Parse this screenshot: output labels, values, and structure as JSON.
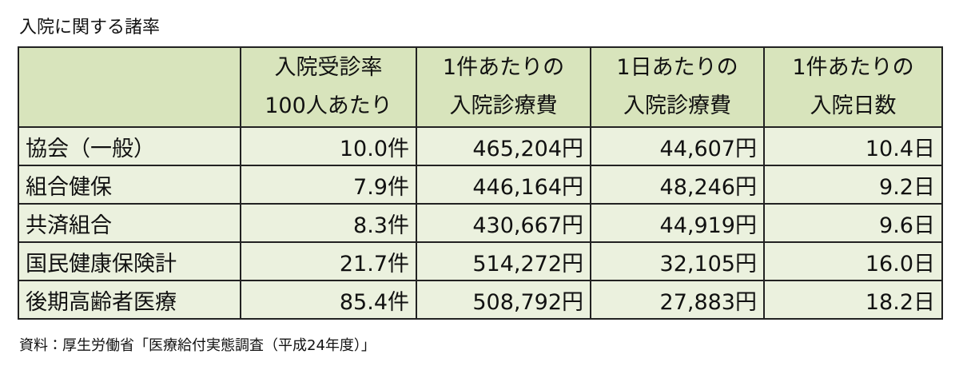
{
  "title": "入院に関する諸率",
  "table": {
    "header": [
      [],
      [
        "入院受診率",
        "100人あたり"
      ],
      [
        "1件あたりの",
        "入院診療費"
      ],
      [
        "1日あたりの",
        "入院診療費"
      ],
      [
        "1件あたりの",
        "入院日数"
      ]
    ],
    "rows": [
      [
        "協会（一般）",
        "10.0件",
        "465,204円",
        "44,607円",
        "10.4日"
      ],
      [
        "組合健保",
        "7.9件",
        "446,164円",
        "48,246円",
        "9.2日"
      ],
      [
        "共済組合",
        "8.3件",
        "430,667円",
        "44,919円",
        "9.6日"
      ],
      [
        "国民健康保険計",
        "21.7件",
        "514,272円",
        "32,105円",
        "16.0日"
      ],
      [
        "後期高齢者医療",
        "85.4件",
        "508,792円",
        "27,883円",
        "18.2日"
      ]
    ]
  },
  "source": "資料：厚生労働省「医療給付実態調査（平成24年度）」"
}
